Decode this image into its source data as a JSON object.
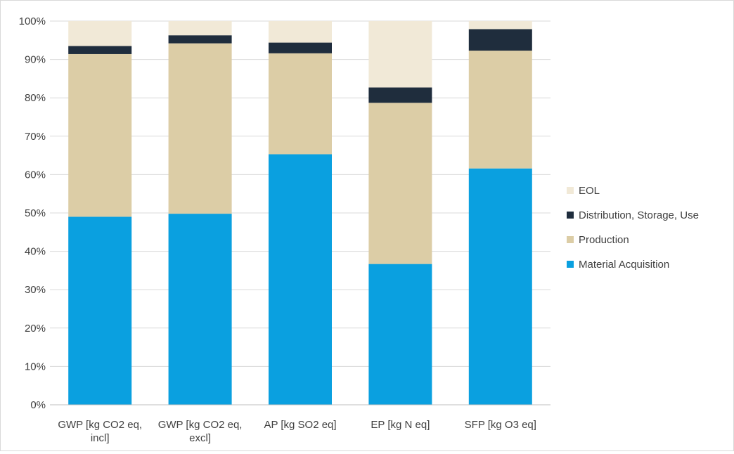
{
  "chart_data": {
    "type": "bar",
    "stacked": true,
    "percent_stacked": true,
    "categories": [
      [
        "GWP [kg CO2 eq,",
        "incl]"
      ],
      [
        "GWP [kg CO2 eq,",
        "excl]"
      ],
      [
        "AP [kg SO2 eq]"
      ],
      [
        "EP [kg N eq]"
      ],
      [
        "SFP [kg O3 eq]"
      ]
    ],
    "series": [
      {
        "name": "Material Acquisition",
        "color": "#0aa0e0",
        "values": [
          49.0,
          49.8,
          65.3,
          36.7,
          61.6
        ]
      },
      {
        "name": "Production",
        "color": "#dccda6",
        "values": [
          42.4,
          44.4,
          26.3,
          42.0,
          30.7
        ]
      },
      {
        "name": "Distribution, Storage, Use",
        "color": "#1f2d3d",
        "values": [
          2.1,
          2.1,
          2.8,
          4.0,
          5.6
        ]
      },
      {
        "name": "EOL",
        "color": "#f1e9d7",
        "values": [
          6.5,
          3.7,
          5.6,
          17.3,
          2.1
        ]
      }
    ],
    "ylim": [
      0,
      100
    ],
    "yticks": [
      "0%",
      "10%",
      "20%",
      "30%",
      "40%",
      "50%",
      "60%",
      "70%",
      "80%",
      "90%",
      "100%"
    ],
    "grid": true,
    "legend_position": "right",
    "legend_order": [
      "EOL",
      "Distribution, Storage, Use",
      "Production",
      "Material Acquisition"
    ],
    "gridline_color": "#d9d9d9",
    "axis_color": "#bfbfbf"
  }
}
